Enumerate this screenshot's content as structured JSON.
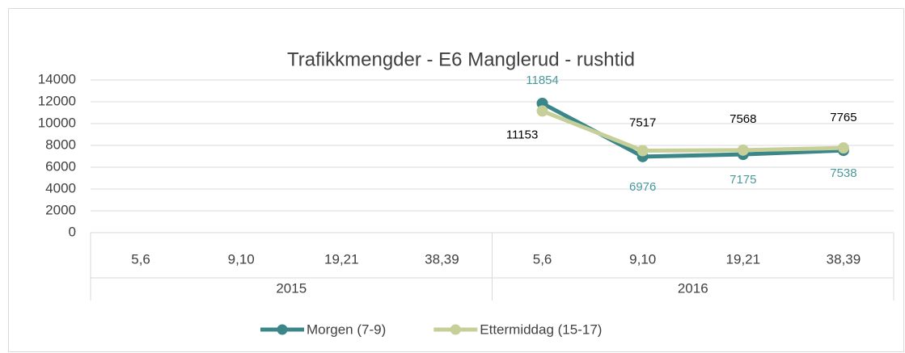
{
  "chart_data": {
    "type": "line",
    "title": "Trafikkmengder - E6 Manglerud - rushtid",
    "categories": [
      "5,6",
      "9,10",
      "19,21",
      "38,39",
      "5,6",
      "9,10",
      "19,21",
      "38,39"
    ],
    "category_groups": [
      "2015",
      "2016"
    ],
    "series": [
      {
        "name": "Morgen (7-9)",
        "color": "#3b8689",
        "label_color": "#4a9a9c",
        "values": [
          null,
          null,
          null,
          null,
          11854,
          6976,
          7175,
          7538
        ]
      },
      {
        "name": "Ettermiddag (15-17)",
        "color": "#c6cf98",
        "label_color": "#000000",
        "values": [
          null,
          null,
          null,
          null,
          11153,
          7517,
          7568,
          7765
        ]
      }
    ],
    "ylim": [
      0,
      14000
    ],
    "yticks": [
      0,
      2000,
      4000,
      6000,
      8000,
      10000,
      12000,
      14000
    ],
    "grid": true,
    "legend": "bottom"
  }
}
